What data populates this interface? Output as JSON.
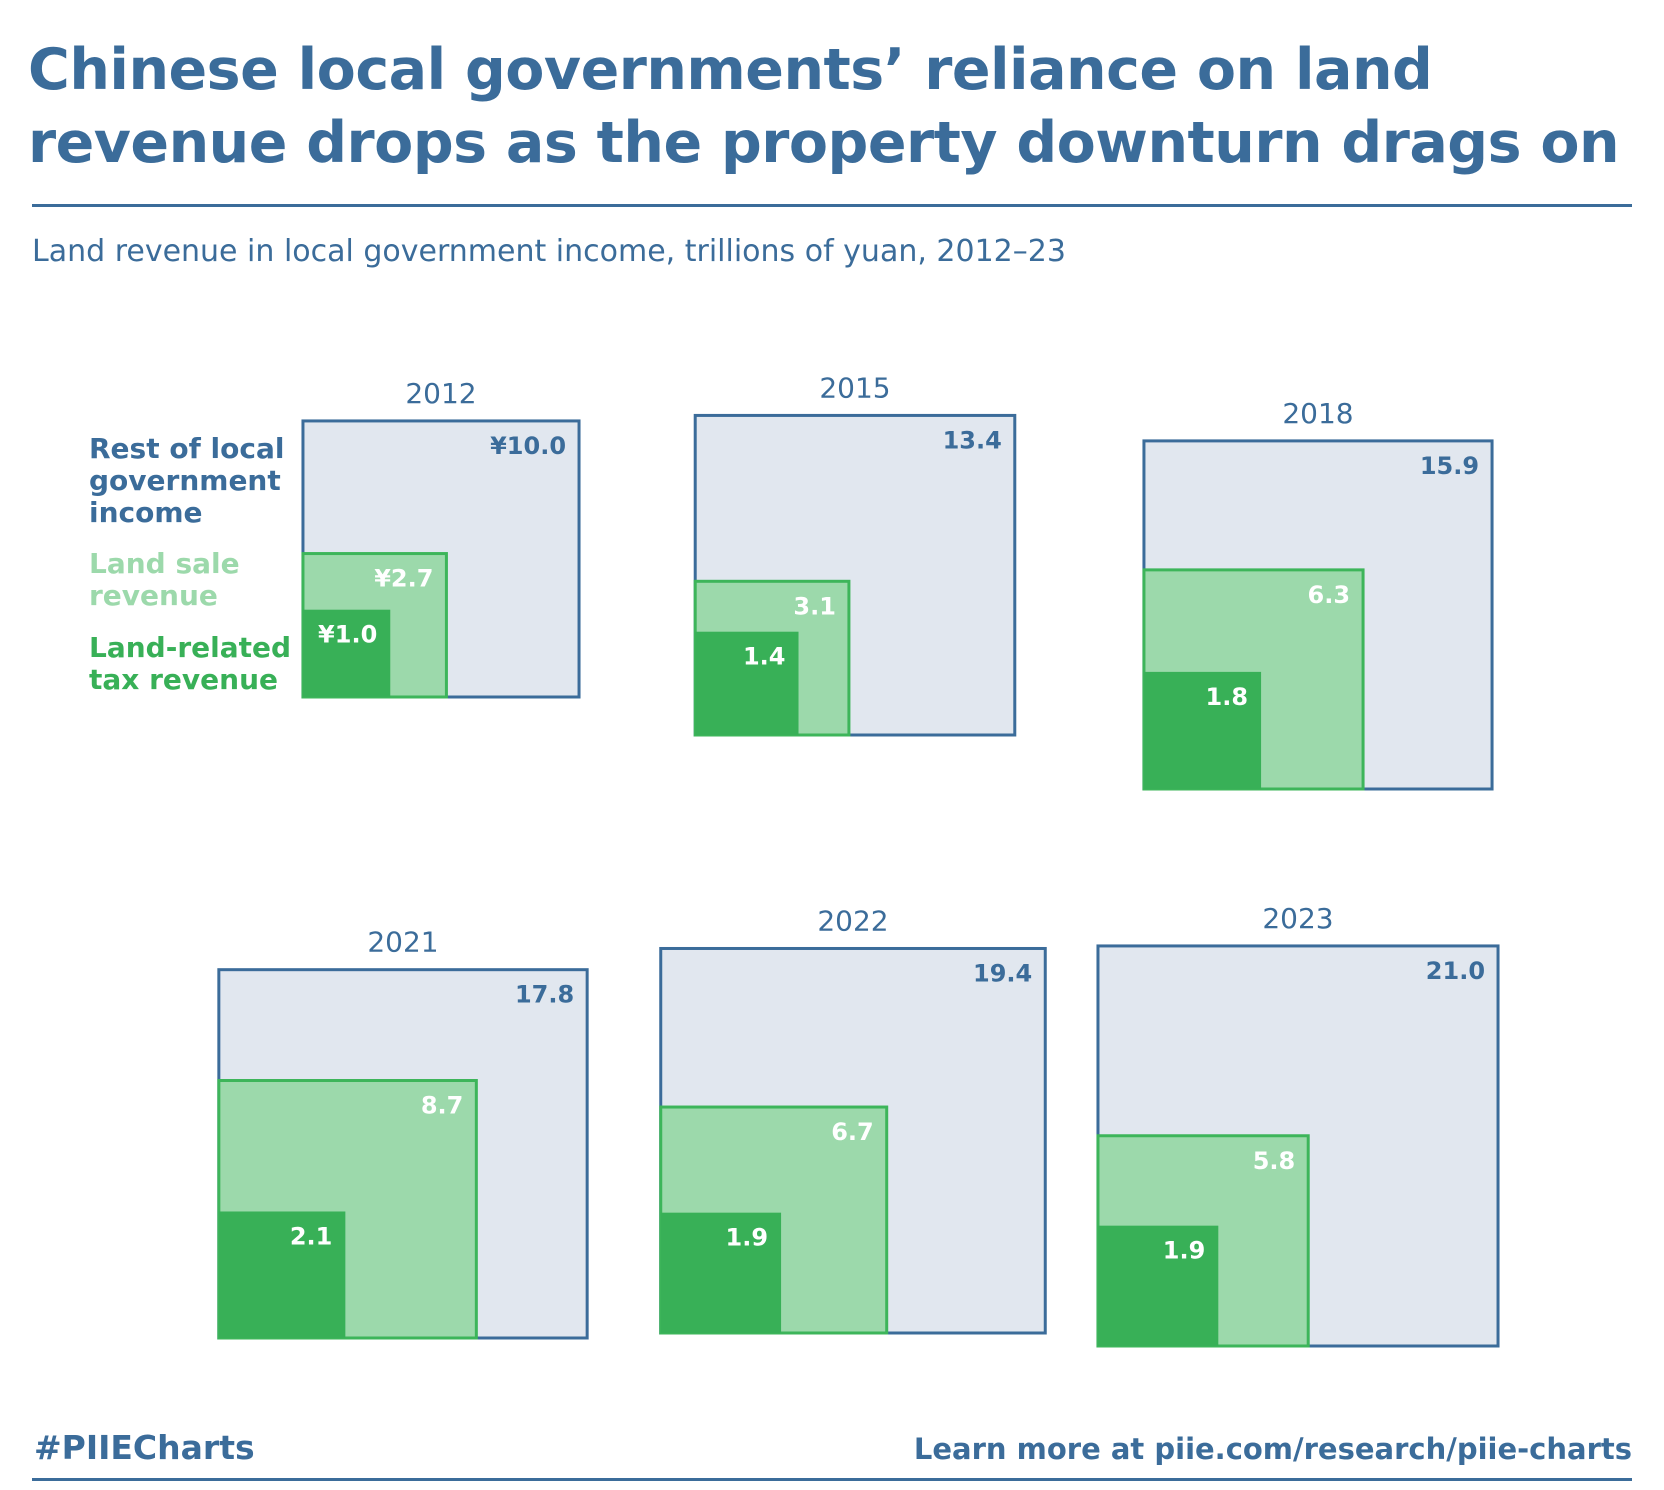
{
  "title": "Chinese local governments’ reliance on land revenue drops as the property downturn drags on",
  "subtitle": "Land revenue in local government income, trillions of yuan, 2012–23",
  "legend": {
    "rest": [
      "Rest of local",
      "government",
      "income"
    ],
    "land_sale": [
      "Land sale",
      "revenue"
    ],
    "land_tax": [
      "Land-related",
      "tax revenue"
    ]
  },
  "colors": {
    "text": "#3b6c9a",
    "rest_fill": "#e1e7ef",
    "rest_stroke": "#3b6c9a",
    "land_sale_fill": "#9cd9ab",
    "land_sale_stroke": "#3db55a",
    "land_tax_fill": "#38b057",
    "legend_land_sale": "#9cd9ab",
    "legend_land_tax": "#38b057"
  },
  "chart_data": {
    "type": "nested-squares",
    "unit": "trillions of yuan",
    "panels": [
      {
        "year": "2012",
        "total": 10.0,
        "land_sale": 2.7,
        "land_tax": 1.0,
        "total_label": "¥10.0",
        "land_sale_label": "¥2.7",
        "land_tax_label": "¥1.0"
      },
      {
        "year": "2015",
        "total": 13.4,
        "land_sale": 3.1,
        "land_tax": 1.4,
        "total_label": "13.4",
        "land_sale_label": "3.1",
        "land_tax_label": "1.4"
      },
      {
        "year": "2018",
        "total": 15.9,
        "land_sale": 6.3,
        "land_tax": 1.8,
        "total_label": "15.9",
        "land_sale_label": "6.3",
        "land_tax_label": "1.8"
      },
      {
        "year": "2021",
        "total": 17.8,
        "land_sale": 8.7,
        "land_tax": 2.1,
        "total_label": "17.8",
        "land_sale_label": "8.7",
        "land_tax_label": "2.1"
      },
      {
        "year": "2022",
        "total": 19.4,
        "land_sale": 6.7,
        "land_tax": 1.9,
        "total_label": "19.4",
        "land_sale_label": "6.7",
        "land_tax_label": "1.9"
      },
      {
        "year": "2023",
        "total": 21.0,
        "land_sale": 5.8,
        "land_tax": 1.9,
        "total_label": "21.0",
        "land_sale_label": "5.8",
        "land_tax_label": "1.9"
      }
    ]
  },
  "footer": {
    "hashtag": "#PIIECharts",
    "link": "Learn more at piie.com/research/piie-charts"
  }
}
